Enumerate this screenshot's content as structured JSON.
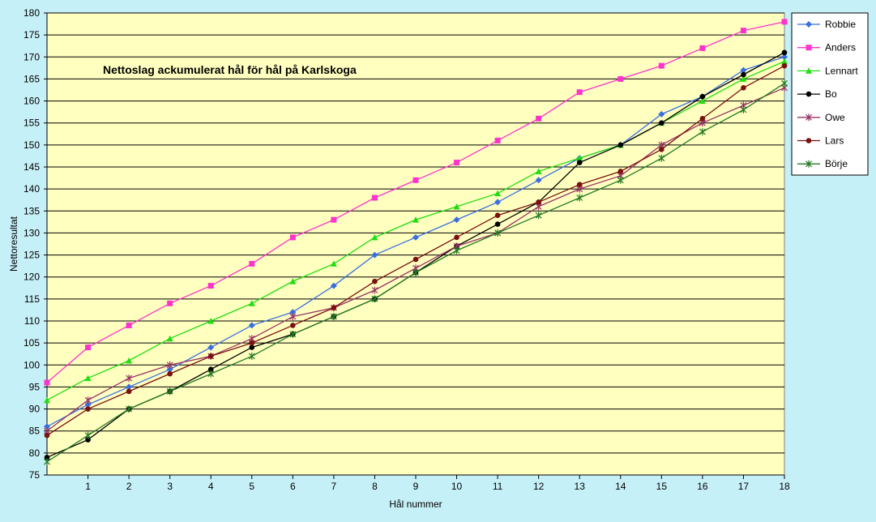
{
  "chart_data": {
    "type": "line",
    "title": "Nettoslag ackumulerat hål för hål på Karlskoga",
    "xlabel": "Hål nummer",
    "ylabel": "Nettoresultat",
    "xlim": [
      0,
      18
    ],
    "ylim": [
      75,
      180
    ],
    "y_tick_step": 5,
    "x_ticks": [
      1,
      2,
      3,
      4,
      5,
      6,
      7,
      8,
      9,
      10,
      11,
      12,
      13,
      14,
      15,
      16,
      17,
      18
    ],
    "x": [
      0,
      1,
      2,
      3,
      4,
      5,
      6,
      7,
      8,
      9,
      10,
      11,
      12,
      13,
      14,
      15,
      16,
      17,
      18
    ],
    "grid": "horizontal",
    "legend_position": "right",
    "plot_background": "#ffffc0",
    "series": [
      {
        "name": "Robbie",
        "color": "#3b6fe0",
        "marker": "diamond",
        "values": [
          86,
          91,
          95,
          99,
          104,
          109,
          112,
          118,
          125,
          129,
          133,
          137,
          142,
          147,
          150,
          157,
          161,
          167,
          170
        ]
      },
      {
        "name": "Anders",
        "color": "#ff33cc",
        "marker": "square",
        "values": [
          96,
          104,
          109,
          114,
          118,
          123,
          129,
          133,
          138,
          142,
          146,
          151,
          156,
          162,
          165,
          168,
          172,
          176,
          178
        ]
      },
      {
        "name": "Lennart",
        "color": "#22dd11",
        "marker": "triangle",
        "values": [
          92,
          97,
          101,
          106,
          110,
          114,
          119,
          123,
          129,
          133,
          136,
          139,
          144,
          147,
          150,
          155,
          160,
          165,
          169
        ]
      },
      {
        "name": "Bo",
        "color": "#000000",
        "marker": "circle",
        "values": [
          79,
          83,
          90,
          94,
          99,
          104,
          107,
          111,
          115,
          121,
          127,
          132,
          137,
          146,
          150,
          155,
          161,
          166,
          171
        ]
      },
      {
        "name": "Owe",
        "color": "#993366",
        "marker": "star",
        "values": [
          85,
          92,
          97,
          100,
          102,
          106,
          111,
          113,
          117,
          122,
          127,
          130,
          136,
          140,
          143,
          150,
          155,
          159,
          163
        ]
      },
      {
        "name": "Lars",
        "color": "#7a1010",
        "marker": "circle",
        "values": [
          84,
          90,
          94,
          98,
          102,
          105,
          109,
          113,
          119,
          124,
          129,
          134,
          137,
          141,
          144,
          149,
          156,
          163,
          168
        ]
      },
      {
        "name": "Börje",
        "color": "#237a23",
        "marker": "star",
        "values": [
          78,
          84,
          90,
          94,
          98,
          102,
          107,
          111,
          115,
          121,
          126,
          130,
          134,
          138,
          142,
          147,
          153,
          158,
          164
        ]
      }
    ]
  }
}
